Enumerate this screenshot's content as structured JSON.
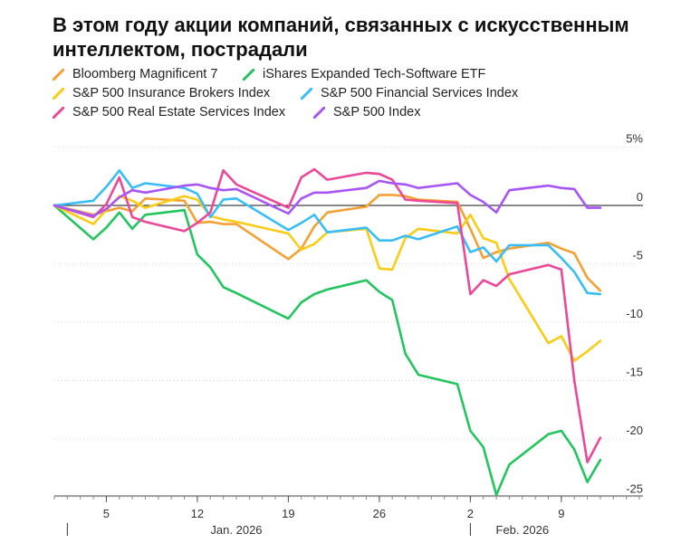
{
  "title": "В этом году акции компаний, связанных с искусственным интеллектом, пострадали",
  "chart_data": {
    "type": "line",
    "title": "В этом году акции компаний, связанных с искусственным интеллектом, пострадали",
    "ylabel": "%",
    "ylim": [
      -25,
      5
    ],
    "y_ticks": [
      5,
      0,
      -5,
      -10,
      -15,
      -20,
      -25
    ],
    "y_tick_labels": [
      "5%",
      "0",
      "-5",
      "-10",
      "-15",
      "-20",
      "-25"
    ],
    "x_range_days": [
      0,
      45
    ],
    "x_tick_days": [
      4,
      11,
      18,
      25,
      32,
      39
    ],
    "x_tick_labels": [
      "5",
      "12",
      "19",
      "26",
      "2",
      "9"
    ],
    "month_labels": [
      {
        "day": 14,
        "label": "Jan. 2026"
      },
      {
        "day": 36,
        "label": "Feb. 2026"
      }
    ],
    "month_divider_days": [
      1,
      32
    ],
    "x_dates": [
      "Jan 2",
      "Jan 5",
      "Jan 6",
      "Jan 7",
      "Jan 8",
      "Jan 9",
      "Jan 12",
      "Jan 13",
      "Jan 14",
      "Jan 15",
      "Jan 16",
      "Jan 20",
      "Jan 21",
      "Jan 22",
      "Jan 23",
      "Jan 26",
      "Jan 27",
      "Jan 28",
      "Jan 29",
      "Jan 30",
      "Feb 2",
      "Feb 3",
      "Feb 4",
      "Feb 5",
      "Feb 6",
      "Feb 9",
      "Feb 10",
      "Feb 11",
      "Feb 12",
      "Feb 13"
    ],
    "x_days": [
      0,
      3,
      4,
      5,
      6,
      7,
      10,
      11,
      12,
      13,
      14,
      18,
      19,
      20,
      21,
      24,
      25,
      26,
      27,
      28,
      31,
      32,
      33,
      34,
      35,
      38,
      39,
      40,
      41,
      42
    ],
    "series": [
      {
        "name": "Bloomberg Magnificent 7",
        "color": "#f5a033",
        "values": [
          0,
          -0.8,
          -0.5,
          -0.2,
          -0.5,
          0.6,
          0.4,
          -1.5,
          -1.4,
          -1.6,
          -1.6,
          -4.6,
          -3.7,
          -1.8,
          -0.6,
          -0.1,
          0.9,
          0.9,
          0.8,
          0.5,
          0.3,
          -2.0,
          -4.5,
          -4.0,
          -3.7,
          -3.2,
          -3.7,
          -4.1,
          -6.2,
          -7.3
        ]
      },
      {
        "name": "iShares Expanded Tech-Software ETF",
        "color": "#22c55e",
        "values": [
          0,
          -2.9,
          -1.9,
          -0.6,
          -2.0,
          -0.8,
          -0.4,
          -4.2,
          -5.3,
          -7.0,
          -7.5,
          -9.7,
          -8.3,
          -7.6,
          -7.2,
          -6.4,
          -7.4,
          -8.1,
          -12.7,
          -14.5,
          -15.3,
          -19.3,
          -20.7,
          -24.8,
          -22.2,
          -19.6,
          -19.3,
          -20.9,
          -23.7,
          -21.8
        ]
      },
      {
        "name": "S&P 500 Insurance Brokers Index",
        "color": "#facc15",
        "values": [
          0,
          -1.6,
          -0.4,
          0.8,
          0.4,
          -0.2,
          0.8,
          0.5,
          -0.9,
          -1.2,
          -1.4,
          -2.4,
          -3.8,
          -3.3,
          -2.3,
          -2.0,
          -5.4,
          -5.5,
          -2.8,
          -2.0,
          -2.4,
          -0.8,
          -2.8,
          -3.2,
          -6.3,
          -11.8,
          -11.2,
          -13.3,
          -12.5,
          -11.6
        ]
      },
      {
        "name": "S&P 500 Financial Services Index",
        "color": "#38bdf8",
        "values": [
          0,
          0.4,
          1.6,
          3.0,
          1.5,
          1.9,
          1.5,
          1.0,
          -1.0,
          0.5,
          0.6,
          -2.1,
          -1.5,
          -0.8,
          -2.3,
          -1.9,
          -3.0,
          -3.0,
          -2.6,
          -2.9,
          -1.8,
          -4.0,
          -3.6,
          -4.8,
          -3.4,
          -3.4,
          -4.5,
          -5.7,
          -7.5,
          -7.6
        ]
      },
      {
        "name": "S&P 500 Real Estate Services Index",
        "color": "#ec4899",
        "values": [
          0,
          -1.0,
          0.1,
          2.4,
          -1.0,
          -1.4,
          -2.2,
          -1.5,
          -0.6,
          3.0,
          1.8,
          -0.2,
          2.4,
          3.1,
          2.2,
          2.8,
          2.7,
          2.2,
          0.5,
          0.4,
          0.2,
          -7.6,
          -6.4,
          -6.9,
          -5.9,
          -5.1,
          -5.5,
          -15.0,
          -22.0,
          -19.9
        ]
      },
      {
        "name": "S&P 500 Index",
        "color": "#a855f7",
        "values": [
          0,
          -0.9,
          -0.3,
          0.7,
          1.3,
          1.1,
          1.7,
          1.8,
          1.5,
          1.3,
          1.4,
          -0.7,
          0.6,
          1.1,
          1.1,
          1.5,
          2.1,
          1.9,
          1.8,
          1.5,
          1.9,
          0.9,
          0.3,
          -0.6,
          1.3,
          1.7,
          1.5,
          1.4,
          -0.2,
          -0.2
        ]
      }
    ]
  }
}
